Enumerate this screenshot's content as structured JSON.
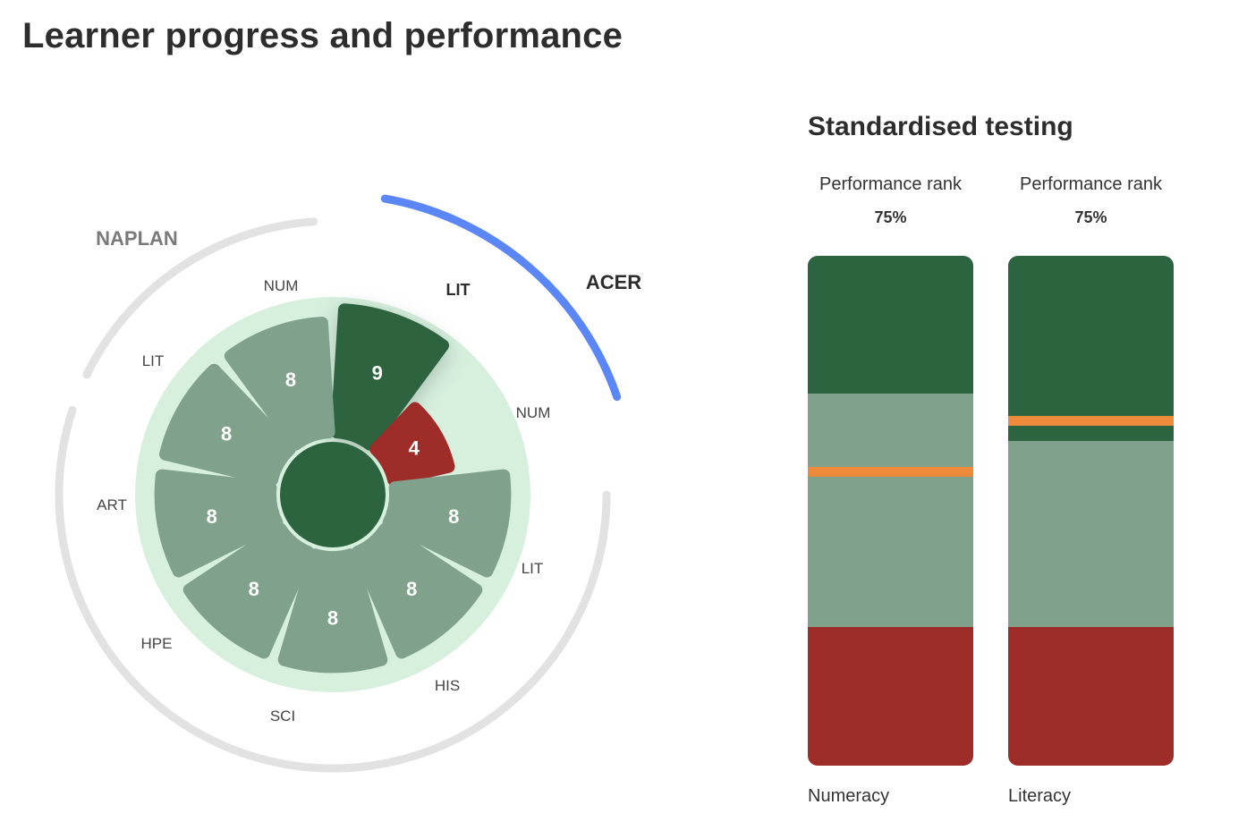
{
  "page": {
    "title": "Learner progress and performance"
  },
  "colors": {
    "dark_green": "#2d6440",
    "mid_green": "#80a28c",
    "light_green": "#d7f0de",
    "red": "#9e2d29",
    "orange": "#ee8a3c",
    "blue": "#5b86f5",
    "grey_arc": "#e2e2e2"
  },
  "wheel": {
    "groups": [
      {
        "name": "NAPLAN"
      },
      {
        "name": "ACER"
      }
    ]
  },
  "standardised": {
    "title": "Standardised testing",
    "bars": [
      {
        "rank_label": "Performance rank",
        "rank_value": "75%",
        "name": "Numeracy",
        "marker_percent": 57
      },
      {
        "rank_label": "Performance rank",
        "rank_value": "75%",
        "name": "Literacy",
        "marker_percent": 67
      }
    ]
  },
  "chart_data": [
    {
      "type": "radial-bar",
      "scale_max": 10,
      "segments": [
        {
          "label": "LIT",
          "group": "ACER",
          "value": 9,
          "status": "high",
          "highlighted": true
        },
        {
          "label": "NUM",
          "group": "ACER",
          "value": 4,
          "status": "low"
        },
        {
          "label": "LIT",
          "group": "other",
          "value": 8,
          "status": "on-track"
        },
        {
          "label": "HIS",
          "group": "other",
          "value": 8,
          "status": "on-track"
        },
        {
          "label": "SCI",
          "group": "other",
          "value": 8,
          "status": "on-track"
        },
        {
          "label": "HPE",
          "group": "other",
          "value": 8,
          "status": "on-track"
        },
        {
          "label": "ART",
          "group": "NAPLAN",
          "value": 8,
          "status": "on-track"
        },
        {
          "label": "LIT",
          "group": "NAPLAN",
          "value": 8,
          "status": "on-track"
        },
        {
          "label": "NUM",
          "group": "NAPLAN",
          "value": 8,
          "status": "on-track"
        }
      ]
    },
    {
      "type": "stacked-bar",
      "title": "Standardised testing",
      "categories": [
        "Numeracy",
        "Literacy"
      ],
      "series": [
        {
          "values": [
            30,
            30
          ]
        },
        {
          "values": [
            46,
            36
          ]
        },
        {
          "values": [
            24,
            34
          ]
        }
      ],
      "markers": [
        57,
        67
      ],
      "ylim": [
        0,
        100
      ]
    }
  ]
}
